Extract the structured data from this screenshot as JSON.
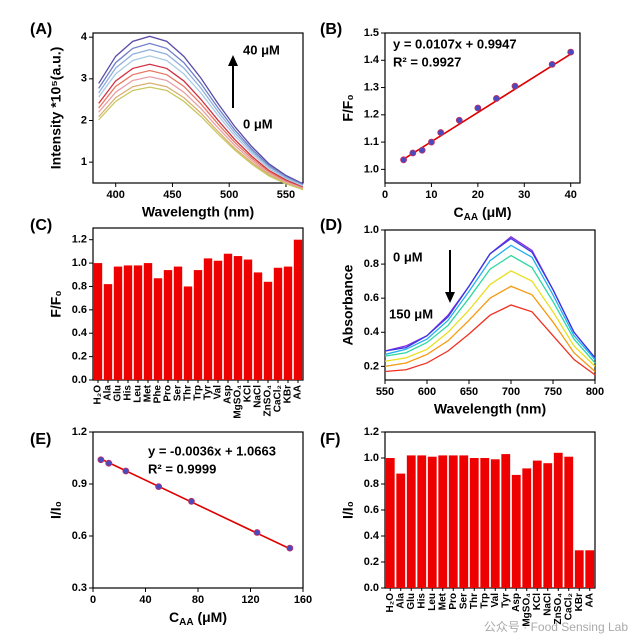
{
  "chart_data": [
    {
      "type": "line",
      "label": "(A)",
      "xlabel": "Wavelength (nm)",
      "ylabel": "Intensity *10⁵(a.u.)",
      "x": [
        385,
        400,
        415,
        430,
        445,
        460,
        475,
        490,
        505,
        520,
        535,
        550,
        565
      ],
      "xlim": [
        380,
        565
      ],
      "xticks": [
        400,
        450,
        500,
        550
      ],
      "ylim": [
        0.5,
        4.1
      ],
      "yticks": [
        1,
        2,
        3,
        4
      ],
      "annotations": [
        "40 μM",
        "0 μM"
      ],
      "series": [
        {
          "color": "#5b4aa8",
          "values": [
            2.89,
            3.54,
            3.9,
            4.02,
            3.9,
            3.54,
            3.02,
            2.41,
            1.85,
            1.37,
            0.96,
            0.68,
            0.48
          ]
        },
        {
          "color": "#6f7fc8",
          "values": [
            2.77,
            3.39,
            3.73,
            3.85,
            3.73,
            3.39,
            2.89,
            2.31,
            1.77,
            1.31,
            0.92,
            0.65,
            0.46
          ]
        },
        {
          "color": "#8fb0dc",
          "values": [
            2.66,
            3.26,
            3.59,
            3.7,
            3.59,
            3.26,
            2.78,
            2.22,
            1.7,
            1.26,
            0.89,
            0.63,
            0.44
          ]
        },
        {
          "color": "#a9cbe3",
          "values": [
            2.56,
            3.12,
            3.44,
            3.55,
            3.44,
            3.12,
            2.66,
            2.13,
            1.63,
            1.21,
            0.85,
            0.6,
            0.43
          ]
        },
        {
          "color": "#d03040",
          "values": [
            2.41,
            2.95,
            3.25,
            3.35,
            3.25,
            2.95,
            2.51,
            2.01,
            1.54,
            1.14,
            0.8,
            0.57,
            0.4
          ]
        },
        {
          "color": "#e87860",
          "values": [
            2.3,
            2.82,
            3.1,
            3.2,
            3.1,
            2.82,
            2.4,
            1.92,
            1.47,
            1.09,
            0.77,
            0.54,
            0.38
          ]
        },
        {
          "color": "#e8a0a8",
          "values": [
            2.2,
            2.68,
            2.96,
            3.05,
            2.96,
            2.68,
            2.29,
            1.83,
            1.4,
            1.04,
            0.73,
            0.52,
            0.37
          ]
        },
        {
          "color": "#d8b070",
          "values": [
            2.09,
            2.55,
            2.81,
            2.9,
            2.81,
            2.55,
            2.18,
            1.74,
            1.33,
            0.99,
            0.7,
            0.49,
            0.35
          ]
        },
        {
          "color": "#c8c860",
          "values": [
            2.02,
            2.46,
            2.72,
            2.8,
            2.72,
            2.46,
            2.1,
            1.68,
            1.29,
            0.95,
            0.67,
            0.48,
            0.34
          ]
        }
      ]
    },
    {
      "type": "scatter",
      "label": "(B)",
      "xlabel": [
        "C",
        "AA",
        " (μM)"
      ],
      "ylabel": "F/F₀",
      "x": [
        4,
        6,
        8,
        10,
        12,
        16,
        20,
        24,
        28,
        36,
        40
      ],
      "values": [
        1.035,
        1.06,
        1.07,
        1.1,
        1.135,
        1.18,
        1.225,
        1.26,
        1.305,
        1.385,
        1.43
      ],
      "color": "#4a4ac0",
      "fit": {
        "slope": 0.0107,
        "intercept": 0.9947,
        "color": "#e00000"
      },
      "annotations": [
        "y = 0.0107x + 0.9947",
        "R² = 0.9927"
      ],
      "xlim": [
        0,
        42
      ],
      "xticks": [
        0,
        10,
        20,
        30,
        40
      ],
      "ylim": [
        0.95,
        1.5
      ],
      "yticks": [
        {
          "value": 1,
          "label": "1.0"
        },
        1.1,
        1.2,
        1.3,
        1.4,
        1.5
      ]
    },
    {
      "type": "bar",
      "label": "(C)",
      "ylabel": "F/F₀",
      "color": "#ee0000",
      "categories": [
        "H₂O",
        "Ala",
        "Glu",
        "His",
        "Leu",
        "Met",
        "Phe",
        "Pro",
        "Ser",
        "Thr",
        "Trp",
        "Tyr",
        "Val",
        "Asp",
        "MgSO₄",
        "KCl",
        "NaCl",
        "ZnSO₄",
        "CaCl₂",
        "KBr",
        "AA"
      ],
      "values": [
        1.0,
        0.82,
        0.97,
        0.98,
        0.98,
        1.0,
        0.87,
        0.94,
        0.97,
        0.8,
        0.94,
        1.04,
        1.02,
        1.08,
        1.06,
        1.03,
        0.92,
        0.84,
        0.96,
        0.97,
        1.2
      ],
      "ylim": [
        0,
        1.3
      ],
      "yticks": [
        {
          "value": 0,
          "label": "0.0"
        },
        0.2,
        0.4,
        0.6,
        0.8,
        {
          "value": 1,
          "label": "1.0"
        },
        1.2
      ]
    },
    {
      "type": "line",
      "label": "(D)",
      "xlabel": "Wavelength (nm)",
      "ylabel": "Absorbance",
      "x": [
        550,
        575,
        600,
        625,
        650,
        675,
        700,
        725,
        750,
        775,
        800
      ],
      "xlim": [
        550,
        800
      ],
      "xticks": [
        550,
        600,
        650,
        700,
        750,
        800
      ],
      "ylim": [
        0.12,
        1.0
      ],
      "yticks": [
        0.2,
        0.4,
        0.6,
        0.8,
        {
          "value": 1,
          "label": "1.0"
        }
      ],
      "annotations": [
        "0 μM",
        "150 μM"
      ],
      "series": [
        {
          "color": "#8a2be2",
          "values": [
            0.29,
            0.32,
            0.38,
            0.5,
            0.67,
            0.86,
            0.96,
            0.88,
            0.65,
            0.4,
            0.25
          ]
        },
        {
          "color": "#3a3ae0",
          "values": [
            0.29,
            0.31,
            0.38,
            0.49,
            0.67,
            0.86,
            0.95,
            0.87,
            0.65,
            0.4,
            0.25
          ]
        },
        {
          "color": "#22b0f0",
          "values": [
            0.27,
            0.3,
            0.36,
            0.47,
            0.64,
            0.82,
            0.91,
            0.84,
            0.62,
            0.38,
            0.24
          ]
        },
        {
          "color": "#30d8a0",
          "values": [
            0.26,
            0.28,
            0.34,
            0.44,
            0.6,
            0.77,
            0.85,
            0.78,
            0.58,
            0.36,
            0.22
          ]
        },
        {
          "color": "#e8e020",
          "values": [
            0.23,
            0.25,
            0.3,
            0.4,
            0.53,
            0.68,
            0.76,
            0.7,
            0.52,
            0.32,
            0.2
          ]
        },
        {
          "color": "#f59a10",
          "values": [
            0.2,
            0.22,
            0.27,
            0.35,
            0.47,
            0.6,
            0.67,
            0.62,
            0.46,
            0.28,
            0.17
          ]
        },
        {
          "color": "#ee3020",
          "values": [
            0.17,
            0.18,
            0.22,
            0.29,
            0.39,
            0.5,
            0.56,
            0.52,
            0.38,
            0.24,
            0.15
          ]
        }
      ]
    },
    {
      "type": "scatter",
      "label": "(E)",
      "xlabel": [
        "C",
        "AA",
        " (μM)"
      ],
      "ylabel": "I/I₀",
      "x": [
        6,
        12,
        25,
        50,
        75,
        125,
        150
      ],
      "values": [
        1.04,
        1.02,
        0.975,
        0.885,
        0.8,
        0.62,
        0.53
      ],
      "color": "#4a4ac0",
      "fit": {
        "slope": -0.0036,
        "intercept": 1.0663,
        "color": "#e00000"
      },
      "annotations": [
        "y = -0.0036x + 1.0663",
        "R² = 0.9999"
      ],
      "xlim": [
        0,
        160
      ],
      "xticks": [
        0,
        40,
        80,
        120,
        160
      ],
      "ylim": [
        0.3,
        1.2
      ],
      "yticks": [
        0.3,
        0.6,
        0.9,
        1.2
      ]
    },
    {
      "type": "bar",
      "label": "(F)",
      "ylabel": "I/I₀",
      "color": "#ee0000",
      "categories": [
        "H₂O",
        "Ala",
        "Glu",
        "His",
        "Leu",
        "Met",
        "Pro",
        "Ser",
        "Thr",
        "Trp",
        "Val",
        "Tyr",
        "Asp",
        "MgSO₄",
        "KCl",
        "NaCl",
        "ZnSO₄",
        "CaCl₂",
        "KBr",
        "AA"
      ],
      "values": [
        1.0,
        0.88,
        1.02,
        1.02,
        1.01,
        1.02,
        1.02,
        1.02,
        1.0,
        1.0,
        0.99,
        1.03,
        0.87,
        0.92,
        0.98,
        0.96,
        1.04,
        1.01,
        0.29,
        0.29
      ],
      "ylim": [
        0,
        1.2
      ],
      "yticks": [
        {
          "value": 0,
          "label": "0.0"
        },
        0.2,
        0.4,
        0.6,
        0.8,
        {
          "value": 1,
          "label": "1.0"
        },
        1.2
      ]
    }
  ],
  "watermark": "公众号 · Food Sensing Lab"
}
